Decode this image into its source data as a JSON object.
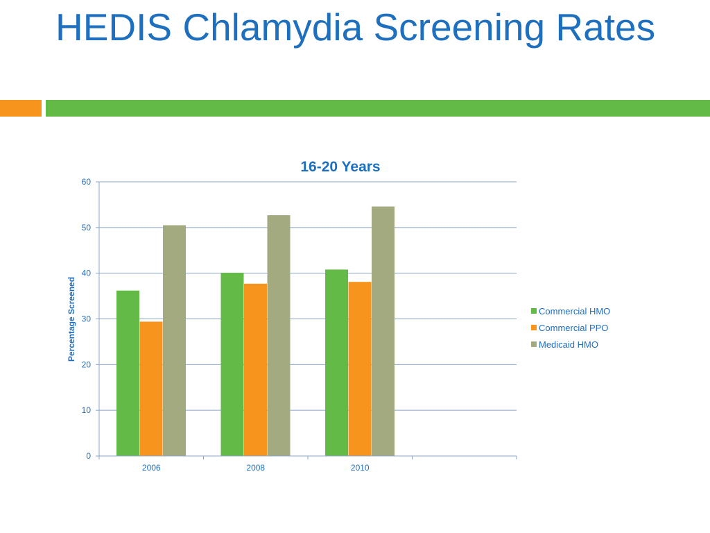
{
  "slide": {
    "title": "HEDIS Chlamydia Screening Rates"
  },
  "colors": {
    "title": "#1f6fbf",
    "accent_orange": "#f7941d",
    "accent_green": "#63ba47",
    "grid": "#8aa4c8"
  },
  "chart_data": {
    "type": "bar",
    "title": "16-20 Years",
    "xlabel": "",
    "ylabel": "Percentage Screened",
    "categories": [
      "2006",
      "2008",
      "2010",
      ""
    ],
    "series": [
      {
        "name": "Commercial HMO",
        "color": "#63ba47",
        "values": [
          36.2,
          40.1,
          40.8,
          null
        ]
      },
      {
        "name": "Commercial PPO",
        "color": "#f7941d",
        "values": [
          29.4,
          37.7,
          38.1,
          null
        ]
      },
      {
        "name": "Medicaid HMO",
        "color": "#a3aa80",
        "values": [
          50.5,
          52.7,
          54.6,
          null
        ]
      }
    ],
    "ylim": [
      0,
      60
    ],
    "yticks": [
      0,
      10,
      20,
      30,
      40,
      50,
      60
    ],
    "grid": true,
    "legend_position": "right"
  }
}
